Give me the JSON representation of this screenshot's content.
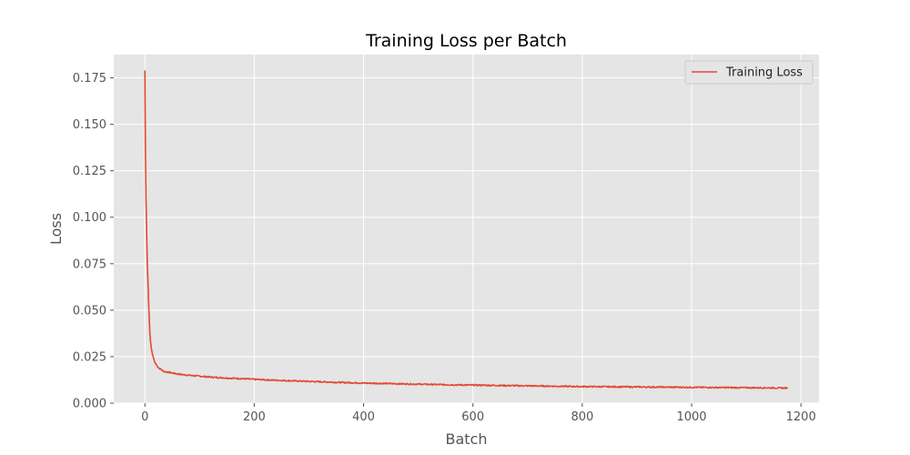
{
  "chart_data": {
    "type": "line",
    "title": "Training Loss per Batch",
    "xlabel": "Batch",
    "ylabel": "Loss",
    "xlim": [
      -57,
      1233
    ],
    "ylim": [
      0,
      0.1875
    ],
    "x_ticks": [
      0,
      200,
      400,
      600,
      800,
      1000,
      1200
    ],
    "y_ticks": [
      0.0,
      0.025,
      0.05,
      0.075,
      0.1,
      0.125,
      0.15,
      0.175
    ],
    "x_tick_labels": [
      "0",
      "200",
      "400",
      "600",
      "800",
      "1000",
      "1200"
    ],
    "y_tick_labels": [
      "0.000",
      "0.025",
      "0.050",
      "0.075",
      "0.100",
      "0.125",
      "0.150",
      "0.175"
    ],
    "grid": true,
    "legend_position": "top-right",
    "colors": {
      "plot_background": "#e5e5e5",
      "grid": "#ffffff",
      "line": "#e24a33"
    },
    "series": [
      {
        "name": "Training Loss",
        "color": "#e24a33",
        "x": [
          0,
          1,
          2,
          3,
          4,
          5,
          6,
          7,
          8,
          9,
          10,
          12,
          14,
          16,
          18,
          20,
          25,
          30,
          35,
          40,
          50,
          60,
          70,
          80,
          100,
          120,
          150,
          175,
          200,
          225,
          250,
          300,
          350,
          400,
          450,
          500,
          550,
          600,
          650,
          700,
          750,
          800,
          850,
          900,
          950,
          1000,
          1050,
          1100,
          1150,
          1175
        ],
        "values": [
          0.179,
          0.135,
          0.11,
          0.095,
          0.08,
          0.07,
          0.062,
          0.052,
          0.045,
          0.038,
          0.034,
          0.029,
          0.026,
          0.024,
          0.022,
          0.021,
          0.019,
          0.018,
          0.017,
          0.0168,
          0.0162,
          0.0157,
          0.0153,
          0.015,
          0.0145,
          0.014,
          0.0135,
          0.0132,
          0.0128,
          0.0125,
          0.0122,
          0.0117,
          0.0112,
          0.0108,
          0.0105,
          0.0102,
          0.0099,
          0.0097,
          0.0095,
          0.0093,
          0.0091,
          0.0089,
          0.0088,
          0.0087,
          0.0086,
          0.0085,
          0.0084,
          0.0083,
          0.0082,
          0.0081
        ]
      }
    ]
  }
}
